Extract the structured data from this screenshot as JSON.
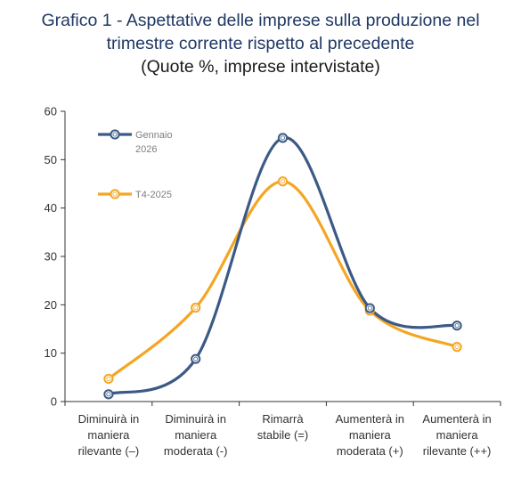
{
  "title": {
    "line1": "Grafico 1 - Aspettative delle imprese sulla produzione nel",
    "line2": "trimestre corrente rispetto al precedente",
    "line3": "(Quote %, imprese intervistate)"
  },
  "colors": {
    "series1": "#3b5a85",
    "series2": "#f4a623",
    "axis": "#333333",
    "title": "#1f3864"
  },
  "chart_data": {
    "type": "line",
    "title": "Grafico 1 - Aspettative delle imprese sulla produzione nel trimestre corrente rispetto al precedente",
    "subtitle": "(Quote %, imprese intervistate)",
    "categories": [
      [
        "Diminuirà in",
        "maniera",
        "rilevante (–)"
      ],
      [
        "Diminuirà in",
        "maniera",
        "moderata (-)"
      ],
      [
        "Rimarrà",
        "stabile (=)"
      ],
      [
        "Aumenterà in",
        "maniera",
        "moderata (+)"
      ],
      [
        "Aumenterà in",
        "maniera",
        "rilevante (++)"
      ]
    ],
    "series": [
      {
        "name": "Gennaio 2026",
        "legend_lines": [
          "Gennaio",
          "2026"
        ],
        "values": [
          1.5,
          8.8,
          54.5,
          19.3,
          15.7
        ],
        "color": "#3b5a85"
      },
      {
        "name": "T4-2025",
        "legend_lines": [
          "T4-2025"
        ],
        "values": [
          4.7,
          19.4,
          45.5,
          18.8,
          11.3
        ],
        "color": "#f4a623"
      }
    ],
    "ylim": [
      0,
      60
    ],
    "yticks": [
      0,
      10,
      20,
      30,
      40,
      50,
      60
    ],
    "grid": false,
    "smooth": true,
    "legend_position": "top-left"
  }
}
